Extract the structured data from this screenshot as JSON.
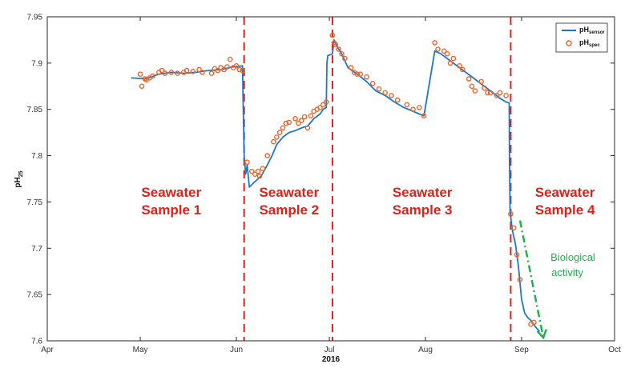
{
  "chart_data": {
    "type": "line",
    "title": "",
    "xlabel": "2016",
    "ylabel_main": "pH",
    "ylabel_sub": "25",
    "x_ticks": [
      "Apr",
      "May",
      "Jun",
      "Jul",
      "Aug",
      "Sep",
      "Oct"
    ],
    "x_tick_days": [
      0,
      30,
      61,
      91,
      122,
      153,
      183
    ],
    "x_range_days": [
      0,
      183
    ],
    "x_origin": "2016-04-01",
    "ylim": [
      7.6,
      7.95
    ],
    "y_ticks": [
      "7.6",
      "7.65",
      "7.7",
      "7.75",
      "7.8",
      "7.85",
      "7.9",
      "7.95"
    ],
    "y_tick_values": [
      7.6,
      7.65,
      7.7,
      7.75,
      7.8,
      7.85,
      7.9,
      7.95
    ],
    "grid": false,
    "legend_position": "top-right",
    "legend": [
      {
        "main": "pH",
        "sub": "sensor",
        "marker": "line",
        "color": "#1f77c4"
      },
      {
        "main": "pH",
        "sub": "spec",
        "marker": "circle",
        "color": "#e8652a"
      }
    ],
    "sensor_color": "#1f77c4",
    "spec_color": "#e8652a",
    "divider_color": "#e0201b",
    "divider_days": [
      63.5,
      92,
      149.5
    ],
    "sections": [
      {
        "line1": "Seawater",
        "line2": "Sample 1",
        "x_day": 40
      },
      {
        "line1": "Seawater",
        "line2": "Sample 2",
        "x_day": 78
      },
      {
        "line1": "Seawater",
        "line2": "Sample 3",
        "x_day": 121
      },
      {
        "line1": "Seawater",
        "line2": "Sample 4",
        "x_day": 167
      }
    ],
    "annotation": {
      "line1": "Biological",
      "line2": "activity",
      "color": "#22b14c",
      "arrow_from": [
        152.5,
        7.73
      ],
      "arrow_to": [
        160,
        7.6
      ]
    },
    "series": [
      {
        "name": "pH sensor",
        "kind": "line",
        "points": [
          [
            27,
            7.884
          ],
          [
            32,
            7.883
          ],
          [
            36,
            7.888
          ],
          [
            40,
            7.89
          ],
          [
            44,
            7.889
          ],
          [
            48,
            7.89
          ],
          [
            52,
            7.892
          ],
          [
            56,
            7.893
          ],
          [
            60,
            7.896
          ],
          [
            63,
            7.897
          ],
          [
            63.2,
            7.855
          ],
          [
            63.5,
            7.8
          ],
          [
            64,
            7.78
          ],
          [
            64.5,
            7.79
          ],
          [
            65.2,
            7.766
          ],
          [
            67,
            7.772
          ],
          [
            69,
            7.778
          ],
          [
            71,
            7.79
          ],
          [
            72.5,
            7.8
          ],
          [
            74,
            7.812
          ],
          [
            76,
            7.82
          ],
          [
            78,
            7.825
          ],
          [
            80,
            7.827
          ],
          [
            82,
            7.83
          ],
          [
            84,
            7.832
          ],
          [
            86,
            7.84
          ],
          [
            88,
            7.845
          ],
          [
            89,
            7.85
          ],
          [
            90,
            7.852
          ],
          [
            90.2,
            7.9
          ],
          [
            90.5,
            7.908
          ],
          [
            92,
            7.91
          ],
          [
            92.5,
            7.925
          ],
          [
            93.5,
            7.918
          ],
          [
            95,
            7.91
          ],
          [
            97,
            7.895
          ],
          [
            100,
            7.888
          ],
          [
            103,
            7.88
          ],
          [
            106,
            7.87
          ],
          [
            109,
            7.865
          ],
          [
            112,
            7.858
          ],
          [
            115,
            7.852
          ],
          [
            118,
            7.848
          ],
          [
            120,
            7.845
          ],
          [
            121.5,
            7.843
          ],
          [
            125,
            7.913
          ],
          [
            127,
            7.91
          ],
          [
            131,
            7.9
          ],
          [
            135,
            7.89
          ],
          [
            139,
            7.88
          ],
          [
            143,
            7.87
          ],
          [
            146,
            7.862
          ],
          [
            148,
            7.858
          ],
          [
            149,
            7.857
          ],
          [
            149.1,
            7.8
          ],
          [
            149.3,
            7.74
          ],
          [
            150,
            7.72
          ],
          [
            151,
            7.705
          ],
          [
            152,
            7.68
          ],
          [
            153,
            7.645
          ],
          [
            154,
            7.63
          ],
          [
            155,
            7.625
          ],
          [
            156,
            7.622
          ],
          [
            157.5,
            7.615
          ],
          [
            158.8,
            7.61
          ]
        ]
      },
      {
        "name": "pH spec",
        "kind": "scatter",
        "points": [
          [
            30,
            7.888
          ],
          [
            30.5,
            7.875
          ],
          [
            31.5,
            7.883
          ],
          [
            32,
            7.882
          ],
          [
            33,
            7.884
          ],
          [
            34,
            7.886
          ],
          [
            36,
            7.89
          ],
          [
            37,
            7.892
          ],
          [
            38,
            7.889
          ],
          [
            40,
            7.89
          ],
          [
            42,
            7.889
          ],
          [
            44,
            7.89
          ],
          [
            45,
            7.892
          ],
          [
            47,
            7.891
          ],
          [
            49,
            7.893
          ],
          [
            50,
            7.89
          ],
          [
            53,
            7.889
          ],
          [
            54,
            7.894
          ],
          [
            55,
            7.892
          ],
          [
            56,
            7.895
          ],
          [
            57,
            7.893
          ],
          [
            58,
            7.896
          ],
          [
            59,
            7.904
          ],
          [
            60,
            7.895
          ],
          [
            61,
            7.897
          ],
          [
            62,
            7.893
          ],
          [
            63,
            7.892
          ],
          [
            64.5,
            7.793
          ],
          [
            66,
            7.783
          ],
          [
            67,
            7.78
          ],
          [
            68,
            7.783
          ],
          [
            68.5,
            7.778
          ],
          [
            69.5,
            7.786
          ],
          [
            71,
            7.8
          ],
          [
            73,
            7.815
          ],
          [
            74,
            7.82
          ],
          [
            75,
            7.825
          ],
          [
            76,
            7.83
          ],
          [
            77,
            7.835
          ],
          [
            78,
            7.836
          ],
          [
            80,
            7.84
          ],
          [
            81,
            7.835
          ],
          [
            82,
            7.838
          ],
          [
            83,
            7.842
          ],
          [
            84,
            7.83
          ],
          [
            85,
            7.843
          ],
          [
            86,
            7.848
          ],
          [
            87,
            7.85
          ],
          [
            88,
            7.852
          ],
          [
            89,
            7.855
          ],
          [
            90,
            7.858
          ],
          [
            92,
            7.93
          ],
          [
            92.5,
            7.922
          ],
          [
            93,
            7.92
          ],
          [
            94,
            7.915
          ],
          [
            95,
            7.91
          ],
          [
            96,
            7.905
          ],
          [
            98,
            7.895
          ],
          [
            99,
            7.89
          ],
          [
            100,
            7.888
          ],
          [
            101,
            7.888
          ],
          [
            103,
            7.885
          ],
          [
            105,
            7.878
          ],
          [
            107,
            7.872
          ],
          [
            109,
            7.868
          ],
          [
            111,
            7.865
          ],
          [
            113,
            7.86
          ],
          [
            116,
            7.855
          ],
          [
            118,
            7.85
          ],
          [
            120,
            7.852
          ],
          [
            121.5,
            7.843
          ],
          [
            125,
            7.922
          ],
          [
            126,
            7.915
          ],
          [
            128,
            7.913
          ],
          [
            129,
            7.91
          ],
          [
            130,
            7.9
          ],
          [
            131,
            7.905
          ],
          [
            133,
            7.897
          ],
          [
            134,
            7.893
          ],
          [
            136,
            7.883
          ],
          [
            137,
            7.875
          ],
          [
            138,
            7.87
          ],
          [
            140,
            7.88
          ],
          [
            141,
            7.873
          ],
          [
            142,
            7.868
          ],
          [
            143,
            7.868
          ],
          [
            145,
            7.865
          ],
          [
            146,
            7.868
          ],
          [
            148,
            7.865
          ],
          [
            149.5,
            7.737
          ],
          [
            150.5,
            7.722
          ],
          [
            151.5,
            7.693
          ],
          [
            152.5,
            7.666
          ],
          [
            156,
            7.618
          ],
          [
            157,
            7.62
          ]
        ]
      }
    ]
  }
}
